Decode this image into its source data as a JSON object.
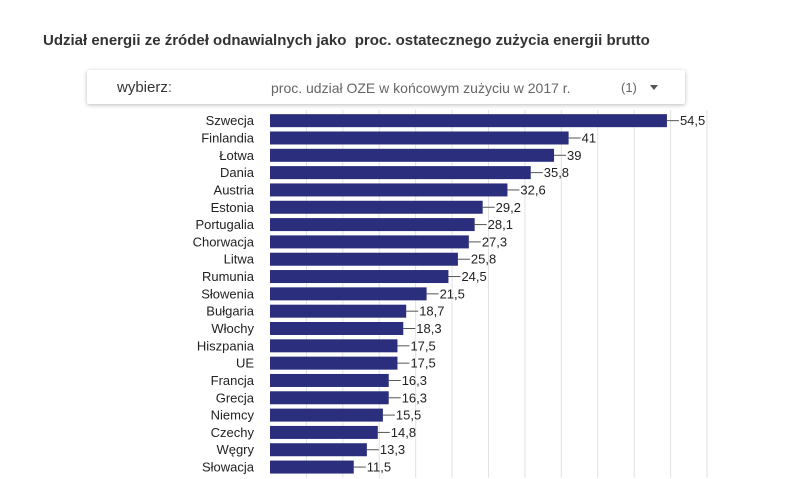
{
  "title": "Udział energii ze źródeł odnawialnych jako  proc. ostatecznego zużycia energii brutto",
  "selector": {
    "label": "wybierz",
    "colon": ":",
    "value": "proc. udział OZE w końcowym zużyciu w 2017 r.",
    "count": "(1)"
  },
  "colors": {
    "bar": "#2a2e7c",
    "grid": "#e2e2e2"
  },
  "chart_data": {
    "type": "bar",
    "orientation": "horizontal",
    "categories": [
      "Szwecja",
      "Finlandia",
      "Łotwa",
      "Dania",
      "Austria",
      "Estonia",
      "Portugalia",
      "Chorwacja",
      "Litwa",
      "Rumunia",
      "Słowenia",
      "Bułgaria",
      "Włochy",
      "Hiszpania",
      "UE",
      "Francja",
      "Grecja",
      "Niemcy",
      "Czechy",
      "Węgry",
      "Słowacja"
    ],
    "values": [
      54.5,
      41,
      39,
      35.8,
      32.6,
      29.2,
      28.1,
      27.3,
      25.8,
      24.5,
      21.5,
      18.7,
      18.3,
      17.5,
      17.5,
      16.3,
      16.3,
      15.5,
      14.8,
      13.3,
      11.5
    ],
    "value_labels": [
      "54,5",
      "41",
      "39",
      "35,8",
      "32,6",
      "29,2",
      "28,1",
      "27,3",
      "25,8",
      "24,5",
      "21,5",
      "18,7",
      "18,3",
      "17,5",
      "17,5",
      "16,3",
      "16,3",
      "15,5",
      "14,8",
      "13,3",
      "11,5"
    ],
    "xlim": [
      0,
      60
    ],
    "grid": true,
    "legend": "none"
  }
}
